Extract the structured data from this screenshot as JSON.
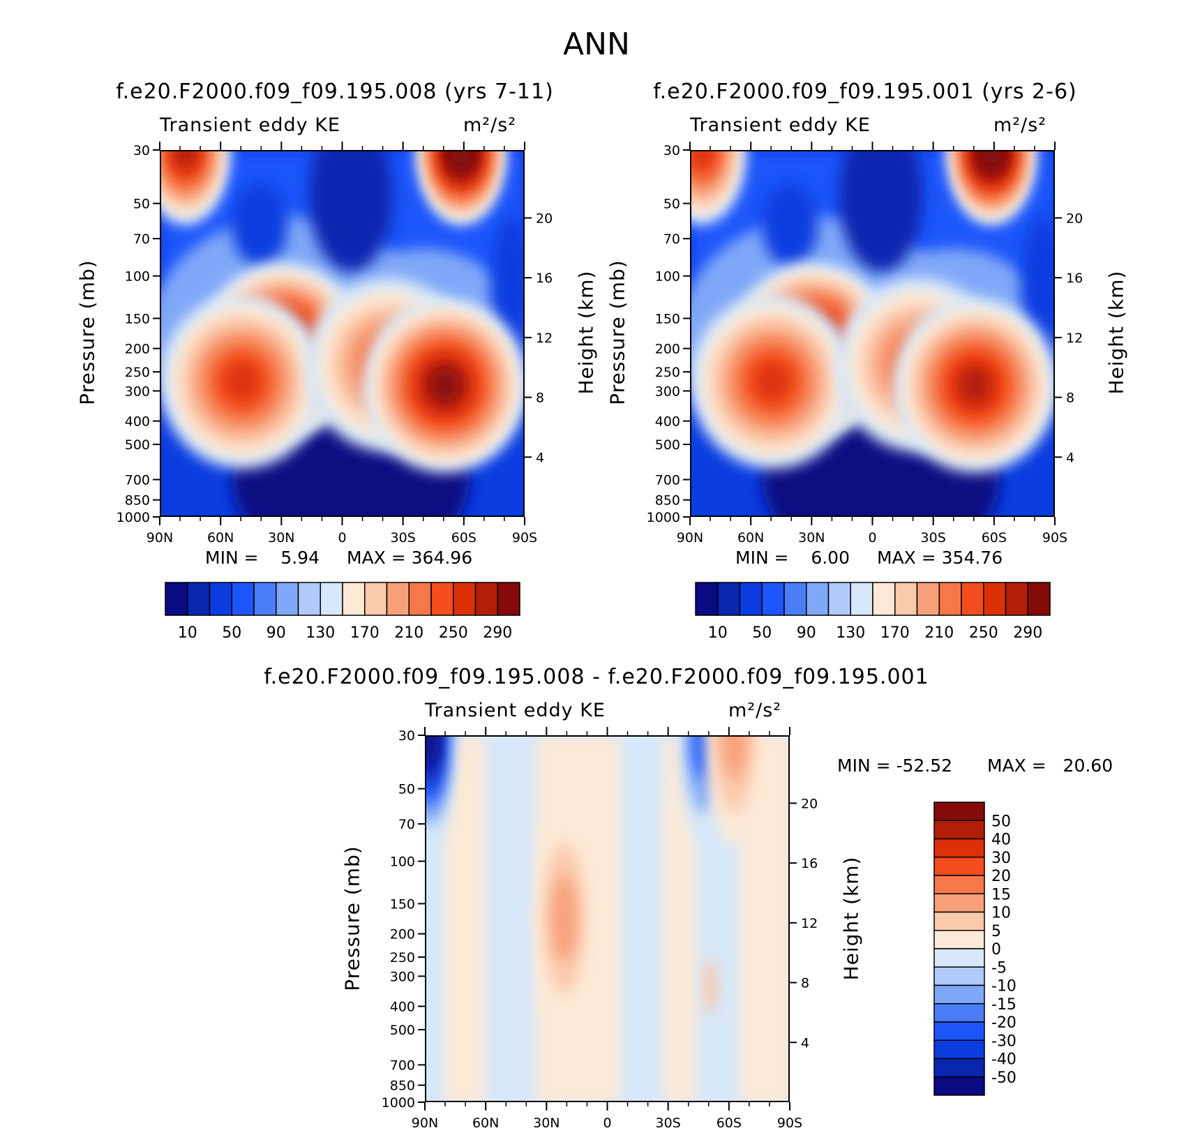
{
  "page_title": "ANN",
  "chart_data": [
    {
      "type": "heatmap",
      "title": "f.e20.F2000.f09_f09.195.008 (yrs 7-11)",
      "field_label": "Transient eddy KE",
      "units": "m²/s²",
      "xlabel": "",
      "ylabel": "Pressure (mb)",
      "ylabel_right": "Height (km)",
      "x_ticks": [
        "90N",
        "60N",
        "30N",
        "0",
        "30S",
        "60S",
        "90S"
      ],
      "y_ticks": [
        "30",
        "50",
        "70",
        "100",
        "150",
        "200",
        "250",
        "300",
        "400",
        "500",
        "700",
        "850",
        "1000"
      ],
      "y_ticks_right": [
        "20",
        "16",
        "12",
        "8",
        "4"
      ],
      "min_text": "MIN =    5.94",
      "max_text": "MAX = 364.96",
      "colorbar_labels": [
        "10",
        "50",
        "90",
        "130",
        "170",
        "210",
        "250",
        "290"
      ],
      "colorbar_colors": [
        "#0a0a82",
        "#0a25b0",
        "#0a3ce0",
        "#1e55fa",
        "#4b7df8",
        "#80a8f8",
        "#b0cafa",
        "#d6e8fa",
        "#fde9d6",
        "#fbc9ac",
        "#f8a07a",
        "#f6774a",
        "#f44d1e",
        "#dc3008",
        "#b41e08",
        "#850a0a"
      ],
      "blobs": [
        {
          "lat": 78,
          "p": 30,
          "v": 290
        },
        {
          "lat": -58,
          "p": 30,
          "v": 350
        },
        {
          "lat": 30,
          "p": 200,
          "v": 330
        },
        {
          "lat": 50,
          "p": 270,
          "v": 270
        },
        {
          "lat": -22,
          "p": 230,
          "v": 250
        },
        {
          "lat": -50,
          "p": 280,
          "v": 300
        }
      ]
    },
    {
      "type": "heatmap",
      "title": "f.e20.F2000.f09_f09.195.001 (yrs 2-6)",
      "field_label": "Transient eddy KE",
      "units": "m²/s²",
      "xlabel": "",
      "ylabel": "Pressure (mb)",
      "ylabel_right": "Height (km)",
      "x_ticks": [
        "90N",
        "60N",
        "30N",
        "0",
        "30S",
        "60S",
        "90S"
      ],
      "y_ticks": [
        "30",
        "50",
        "70",
        "100",
        "150",
        "200",
        "250",
        "300",
        "400",
        "500",
        "700",
        "850",
        "1000"
      ],
      "y_ticks_right": [
        "20",
        "16",
        "12",
        "8",
        "4"
      ],
      "min_text": "MIN =    6.00",
      "max_text": "MAX = 354.76",
      "colorbar_labels": [
        "10",
        "50",
        "90",
        "130",
        "170",
        "210",
        "250",
        "290"
      ],
      "colorbar_colors": [
        "#0a0a82",
        "#0a25b0",
        "#0a3ce0",
        "#1e55fa",
        "#4b7df8",
        "#80a8f8",
        "#b0cafa",
        "#d6e8fa",
        "#fde9d6",
        "#fbc9ac",
        "#f8a07a",
        "#f6774a",
        "#f44d1e",
        "#dc3008",
        "#b41e08",
        "#850a0a"
      ],
      "blobs": [
        {
          "lat": 85,
          "p": 30,
          "v": 260
        },
        {
          "lat": -58,
          "p": 30,
          "v": 340
        },
        {
          "lat": 30,
          "p": 200,
          "v": 320
        },
        {
          "lat": 50,
          "p": 270,
          "v": 260
        },
        {
          "lat": -22,
          "p": 230,
          "v": 240
        },
        {
          "lat": -50,
          "p": 280,
          "v": 290
        }
      ]
    },
    {
      "type": "heatmap",
      "title": "f.e20.F2000.f09_f09.195.008 - f.e20.F2000.f09_f09.195.001",
      "field_label": "Transient eddy KE",
      "units": "m²/s²",
      "xlabel": "",
      "ylabel": "Pressure (mb)",
      "ylabel_right": "Height (km)",
      "x_ticks": [
        "90N",
        "60N",
        "30N",
        "0",
        "30S",
        "60S",
        "90S"
      ],
      "y_ticks": [
        "30",
        "50",
        "70",
        "100",
        "150",
        "200",
        "250",
        "300",
        "400",
        "500",
        "700",
        "850",
        "1000"
      ],
      "y_ticks_right": [
        "20",
        "16",
        "12",
        "8",
        "4"
      ],
      "min_text": "MIN = -52.52",
      "max_text": "MAX =   20.60",
      "colorbar_labels": [
        "50",
        "40",
        "30",
        "20",
        "15",
        "10",
        "5",
        "0",
        "-5",
        "-10",
        "-15",
        "-20",
        "-30",
        "-40",
        "-50"
      ],
      "colorbar_colors": [
        "#850a0a",
        "#b41e08",
        "#dc3008",
        "#f44d1e",
        "#f6774a",
        "#f8a07a",
        "#fbc9ac",
        "#fde9d6",
        "#d6e8fa",
        "#b0cafa",
        "#80a8f8",
        "#4b7df8",
        "#1e55fa",
        "#0a3ce0",
        "#0a25b0",
        "#0a0a82"
      ],
      "blobs": [
        {
          "lat": 88,
          "p": 30,
          "v": -50
        },
        {
          "lat": -47,
          "p": 30,
          "v": -25
        },
        {
          "lat": -62,
          "p": 30,
          "v": 18
        },
        {
          "lat": 22,
          "p": 170,
          "v": 8
        }
      ]
    }
  ]
}
